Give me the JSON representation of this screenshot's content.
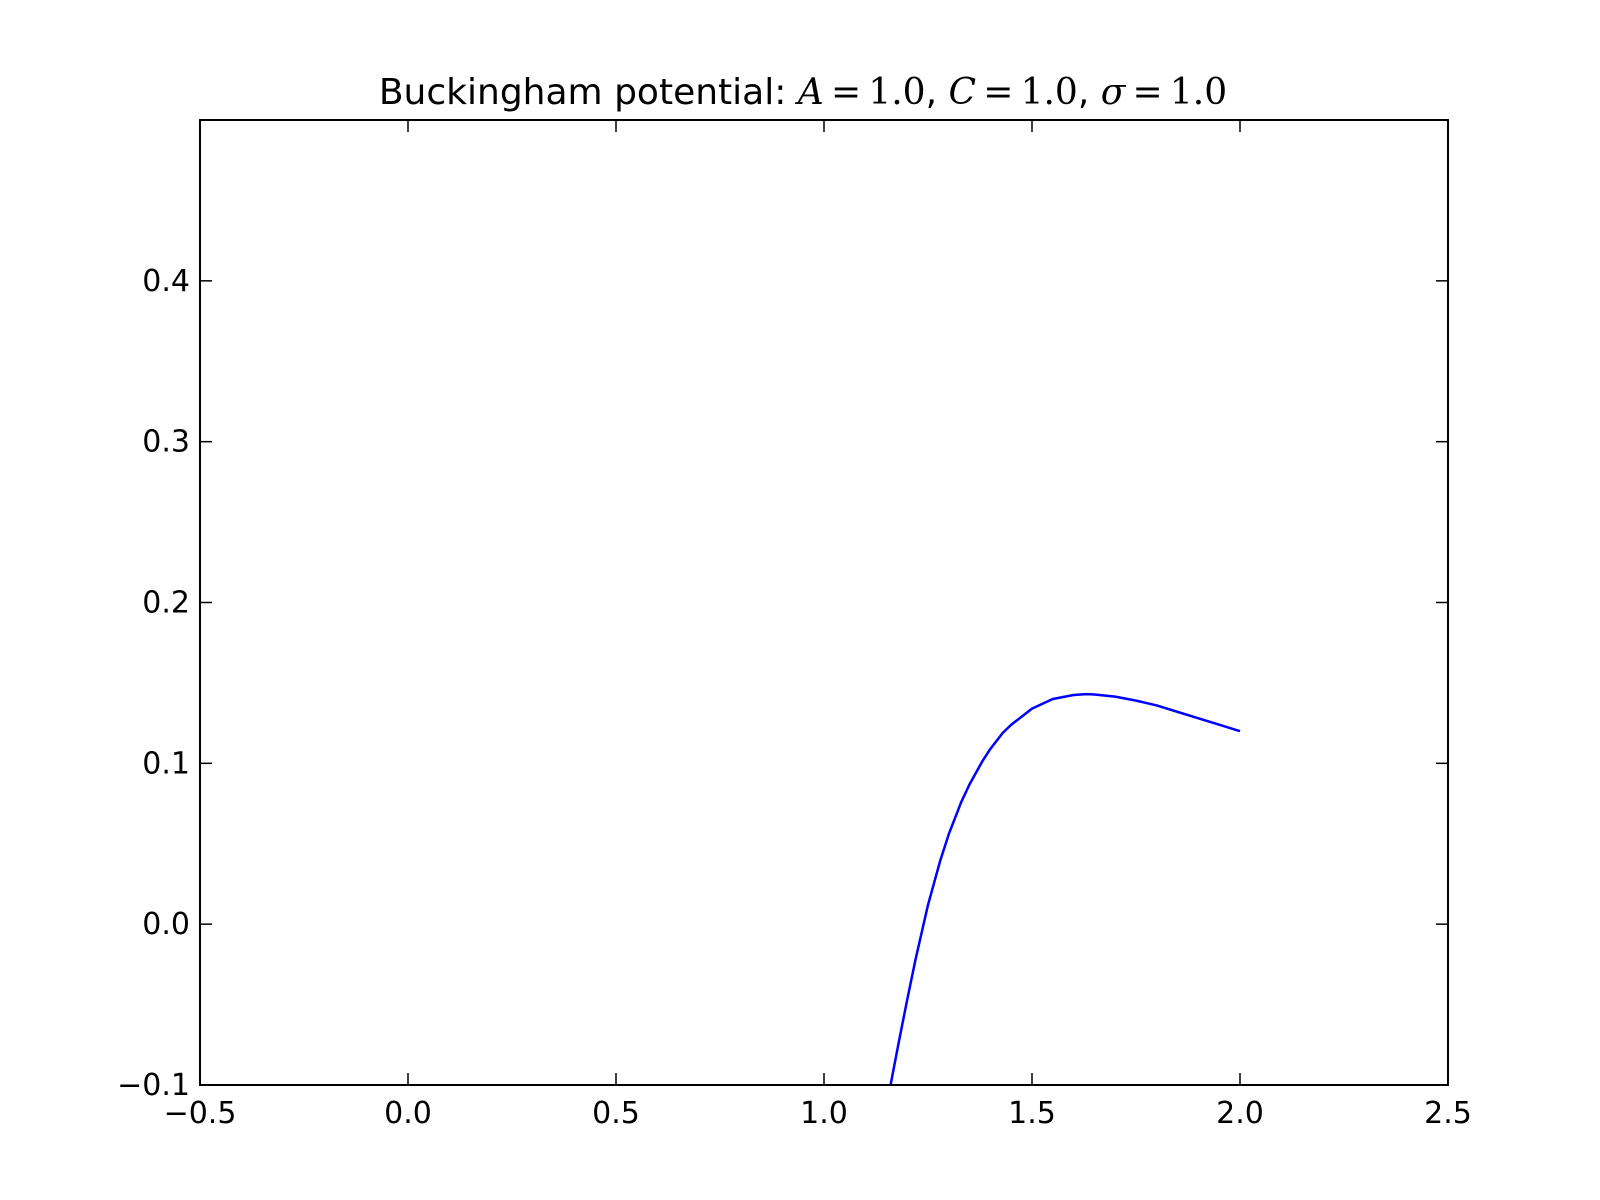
{
  "chart_data": {
    "type": "line",
    "title": {
      "prefix": "Buckingham potential: ",
      "params": [
        {
          "symbol": "A",
          "value": "1.0",
          "sep": ", "
        },
        {
          "symbol": "C",
          "value": "1.0",
          "sep": ", "
        },
        {
          "symbol": "σ",
          "value": "1.0",
          "sep": ""
        }
      ]
    },
    "xlabel": "",
    "ylabel": "",
    "xlim": [
      -0.5,
      2.5
    ],
    "ylim": [
      -0.1,
      0.5
    ],
    "xticks": [
      -0.5,
      0.0,
      0.5,
      1.0,
      1.5,
      2.0,
      2.5
    ],
    "xtick_labels": [
      "−0.5",
      "0.0",
      "0.5",
      "1.0",
      "1.5",
      "2.0",
      "2.5"
    ],
    "yticks": [
      -0.1,
      0.0,
      0.1,
      0.2,
      0.3,
      0.4
    ],
    "ytick_labels": [
      "−0.1",
      "0.0",
      "0.1",
      "0.2",
      "0.3",
      "0.4"
    ],
    "grid": false,
    "series": [
      {
        "color": "#0000ff",
        "x": [
          1.16,
          1.18,
          1.2,
          1.22,
          1.25,
          1.28,
          1.3,
          1.33,
          1.35,
          1.38,
          1.4,
          1.43,
          1.45,
          1.48,
          1.5,
          1.55,
          1.6,
          1.63,
          1.65,
          1.7,
          1.75,
          1.8,
          1.85,
          1.9,
          1.95,
          2.0
        ],
        "y": [
          -0.1,
          -0.073,
          -0.047,
          -0.022,
          0.012,
          0.04,
          0.056,
          0.076,
          0.087,
          0.101,
          0.109,
          0.119,
          0.124,
          0.13,
          0.134,
          0.14,
          0.1425,
          0.143,
          0.1428,
          0.1415,
          0.139,
          0.136,
          0.132,
          0.128,
          0.124,
          0.12
        ]
      }
    ]
  }
}
